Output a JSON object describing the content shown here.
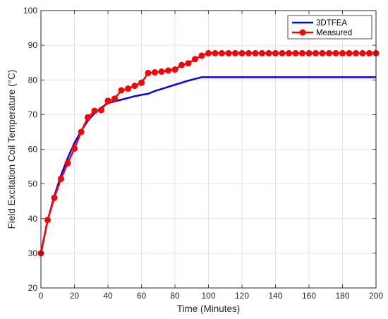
{
  "chart_data": {
    "type": "line",
    "xlabel": "Time (Minutes)",
    "ylabel": "Field Excitation Coil Temperature (°C)",
    "xlim": [
      0,
      200
    ],
    "ylim": [
      20,
      100
    ],
    "x_ticks": [
      0,
      20,
      40,
      60,
      80,
      100,
      120,
      140,
      160,
      180,
      200
    ],
    "y_ticks": [
      20,
      30,
      40,
      50,
      60,
      70,
      80,
      90,
      100
    ],
    "grid": true,
    "legend_position": "top-right",
    "series": [
      {
        "name": "3DTFEA",
        "color": "#0000ff",
        "marker": "none",
        "x": [
          0,
          4,
          8,
          12,
          16,
          20,
          24,
          28,
          32,
          36,
          40,
          44,
          48,
          52,
          56,
          60,
          64,
          68,
          72,
          76,
          80,
          84,
          88,
          92,
          96,
          100,
          110,
          120,
          130,
          140,
          150,
          160,
          170,
          180,
          190,
          200
        ],
        "y": [
          30,
          39.5,
          46.5,
          52.5,
          57.5,
          61.8,
          65.3,
          68.2,
          70.4,
          72,
          73.3,
          73.8,
          74.3,
          74.8,
          75.3,
          75.7,
          76,
          76.8,
          77.4,
          78,
          78.6,
          79.2,
          79.8,
          80.3,
          80.8,
          80.8,
          80.8,
          80.8,
          80.8,
          80.8,
          80.8,
          80.8,
          80.8,
          80.8,
          80.8,
          80.8
        ]
      },
      {
        "name": "Measured",
        "color": "#ff0000",
        "marker": "circle",
        "x": [
          0,
          4,
          8,
          12,
          16,
          20,
          24,
          28,
          32,
          36,
          40,
          44,
          48,
          52,
          56,
          60,
          64,
          68,
          72,
          76,
          80,
          84,
          88,
          92,
          96,
          100,
          104,
          108,
          112,
          116,
          120,
          124,
          128,
          132,
          136,
          140,
          144,
          148,
          152,
          156,
          160,
          164,
          168,
          172,
          176,
          180,
          184,
          188,
          192,
          196,
          200
        ],
        "y": [
          30,
          39.6,
          46,
          51.5,
          56,
          60.2,
          65,
          69.2,
          71.1,
          71.3,
          74,
          74.6,
          77,
          77.5,
          78.3,
          79.2,
          82,
          82.2,
          82.4,
          82.7,
          83,
          84.3,
          84.8,
          86,
          87,
          87.7,
          87.7,
          87.7,
          87.7,
          87.7,
          87.7,
          87.7,
          87.7,
          87.7,
          87.7,
          87.7,
          87.7,
          87.7,
          87.7,
          87.7,
          87.7,
          87.7,
          87.7,
          87.7,
          87.7,
          87.7,
          87.7,
          87.7,
          87.7,
          87.7,
          87.7
        ]
      }
    ]
  }
}
